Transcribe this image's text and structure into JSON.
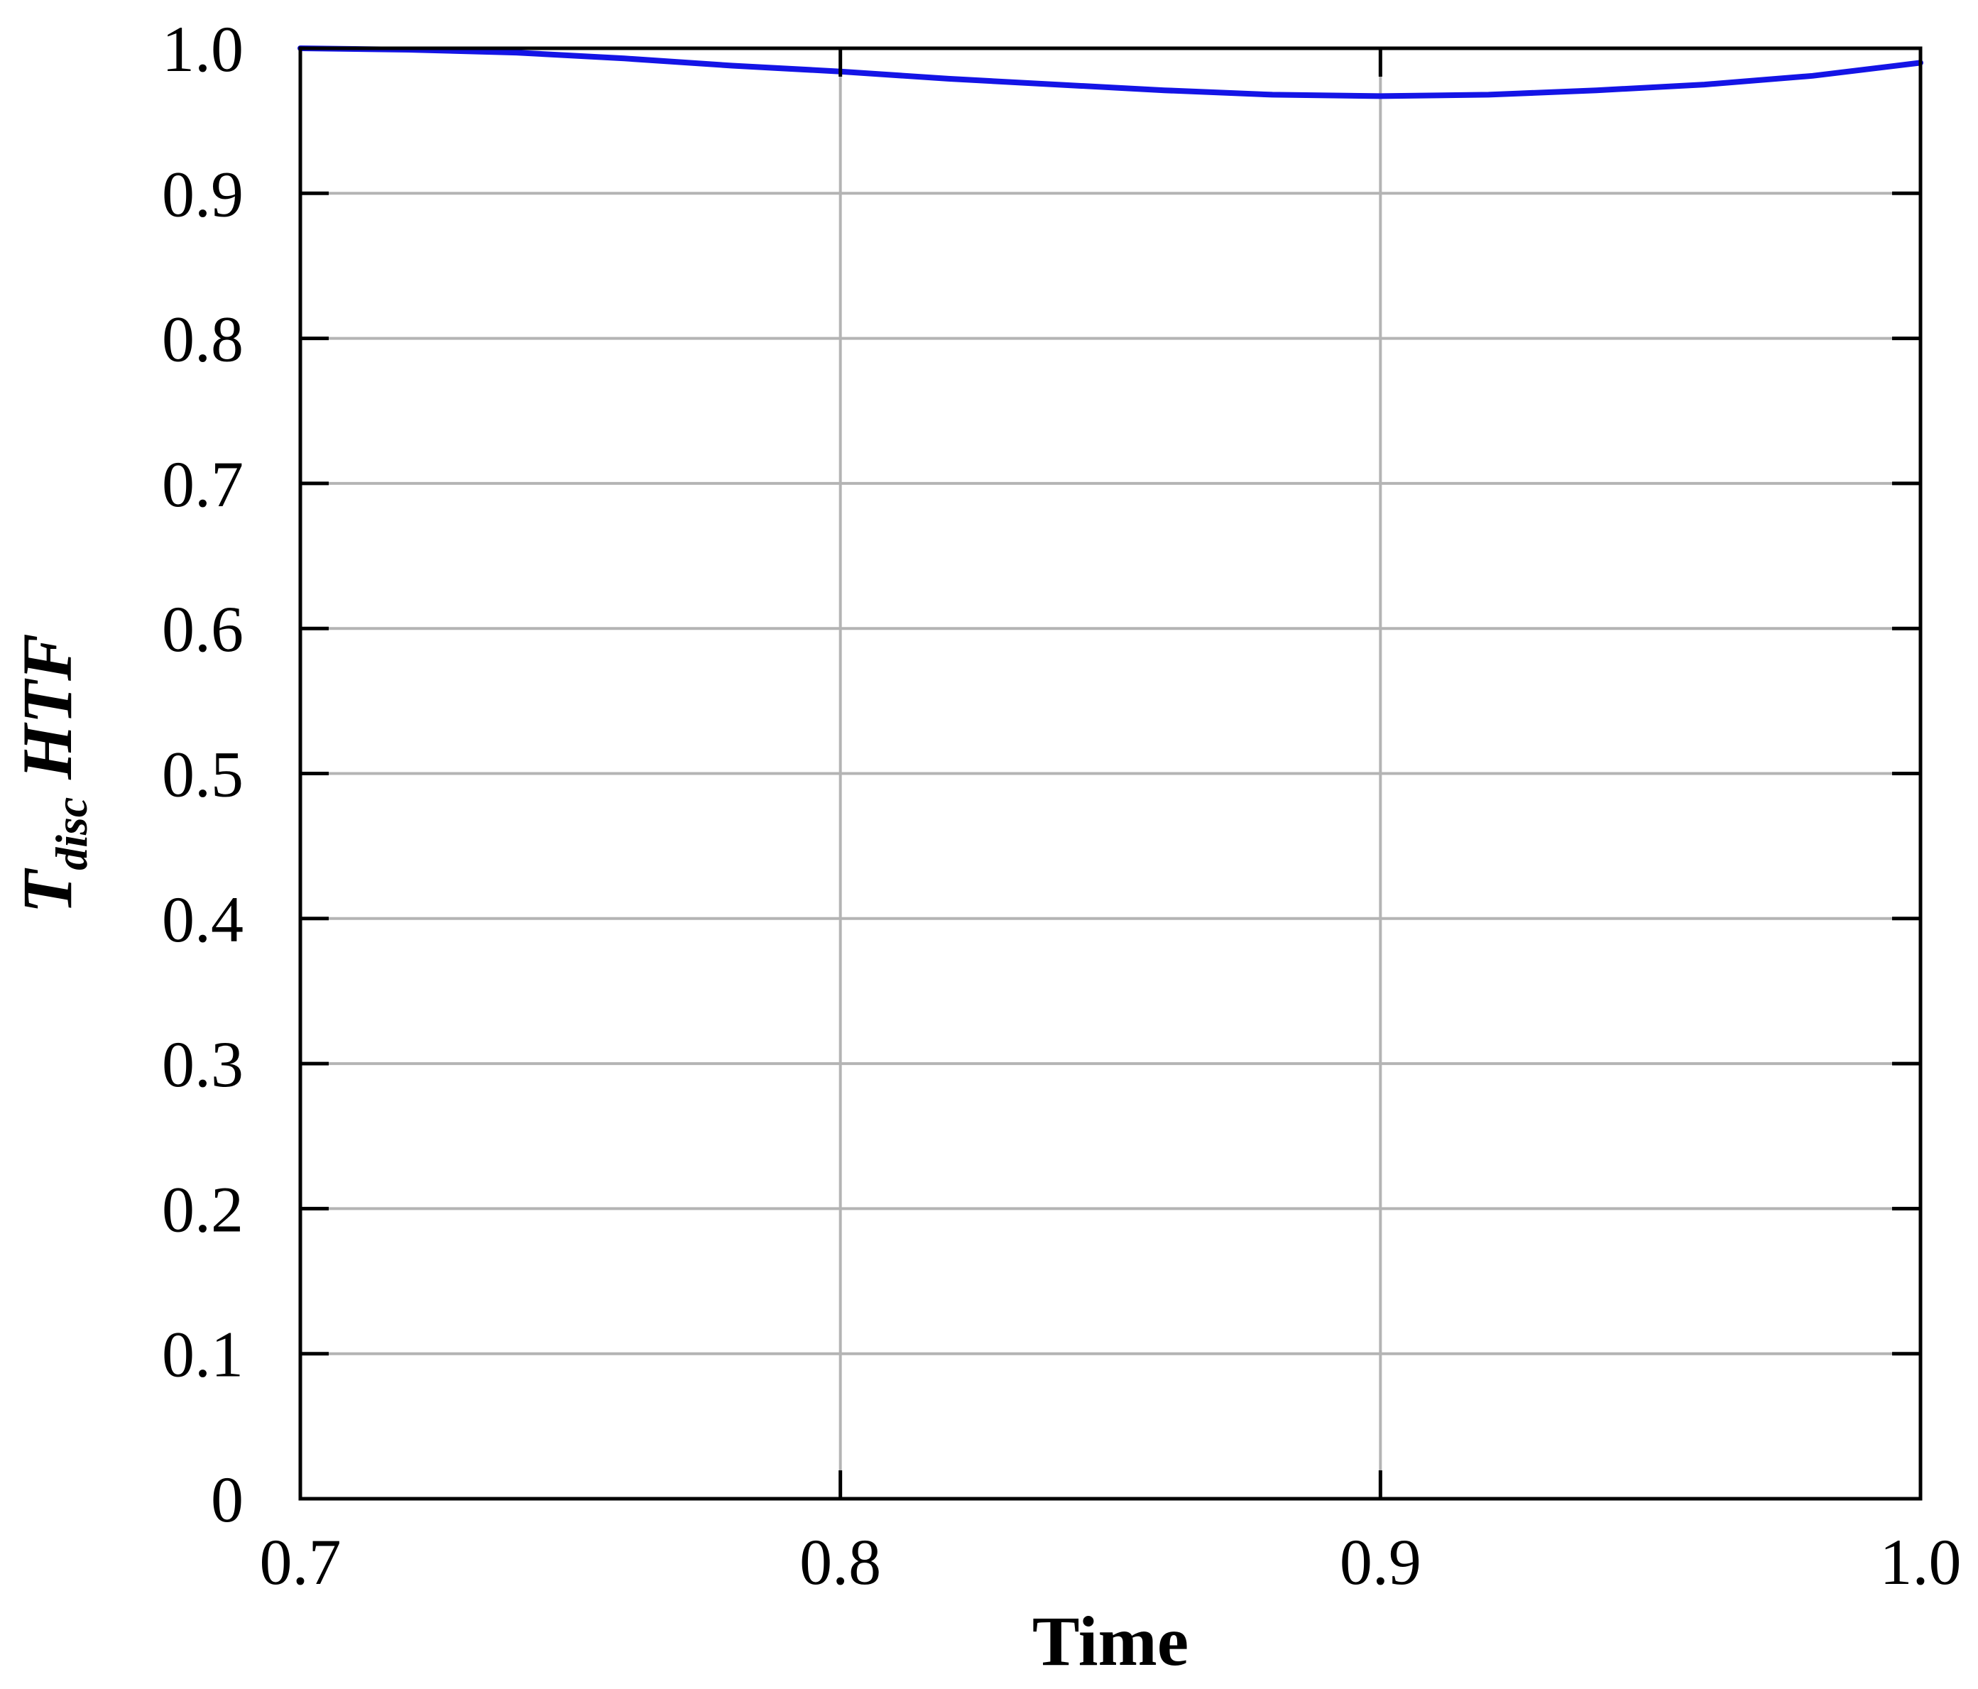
{
  "chart_data": {
    "type": "line",
    "title": "",
    "xlabel": "Time",
    "ylabel": {
      "main": "T",
      "subscript": "disc",
      "suffix": "HTF"
    },
    "xlim": [
      0.7,
      1.0
    ],
    "ylim": [
      0,
      1.0
    ],
    "x_ticks": [
      "0.7",
      "0.8",
      "0.9",
      "1.0"
    ],
    "y_ticks": [
      "0",
      "0.1",
      "0.2",
      "0.3",
      "0.4",
      "0.5",
      "0.6",
      "0.7",
      "0.8",
      "0.9",
      "1.0"
    ],
    "grid": true,
    "legend": "none",
    "colors": {
      "series": "#1414e6",
      "grid": "#b4b4b4",
      "axes": "#000000"
    },
    "series": [
      {
        "x": [
          0.7,
          0.72,
          0.74,
          0.76,
          0.78,
          0.8,
          0.82,
          0.84,
          0.86,
          0.88,
          0.9,
          0.92,
          0.94,
          0.96,
          0.98,
          1.0
        ],
        "y": [
          1.0,
          0.999,
          0.997,
          0.993,
          0.988,
          0.984,
          0.979,
          0.975,
          0.971,
          0.968,
          0.967,
          0.968,
          0.971,
          0.975,
          0.981,
          0.99
        ]
      }
    ]
  }
}
